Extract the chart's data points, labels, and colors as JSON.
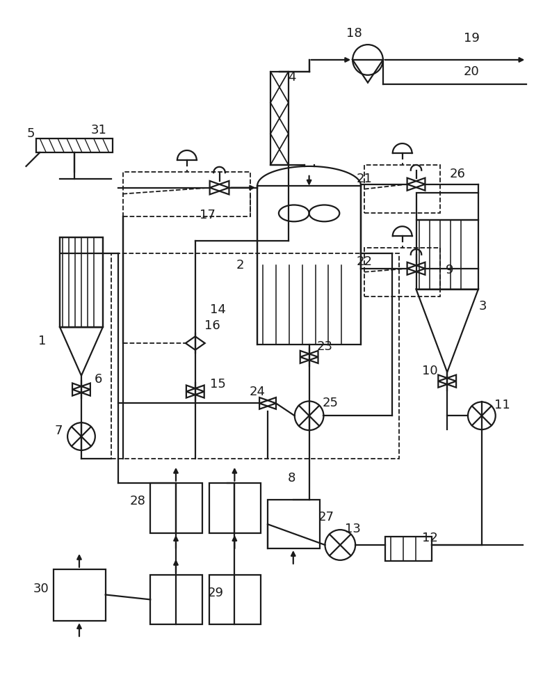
{
  "bg": "#ffffff",
  "lc": "#1a1a1a",
  "lw": 1.6,
  "dlw": 1.3,
  "fs": [
    7.81,
    10.0
  ],
  "dpi": 100
}
